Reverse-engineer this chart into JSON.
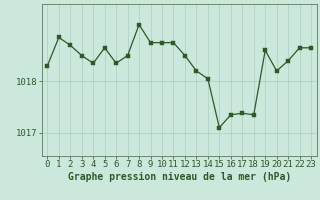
{
  "x": [
    0,
    1,
    2,
    3,
    4,
    5,
    6,
    7,
    8,
    9,
    10,
    11,
    12,
    13,
    14,
    15,
    16,
    17,
    18,
    19,
    20,
    21,
    22,
    23
  ],
  "y": [
    1018.3,
    1018.85,
    1018.7,
    1018.5,
    1018.35,
    1018.65,
    1018.35,
    1018.5,
    1019.1,
    1018.75,
    1018.75,
    1018.75,
    1018.5,
    1018.2,
    1018.05,
    1017.1,
    1017.35,
    1017.38,
    1017.35,
    1018.6,
    1018.2,
    1018.4,
    1018.65,
    1018.65
  ],
  "line_color": "#2d5a27",
  "marker_color": "#2d5a27",
  "bg_color": "#cce8dc",
  "grid_color": "#aacfbe",
  "axis_color": "#2d5a27",
  "border_color": "#5a7a5a",
  "ylabel_ticks": [
    1017,
    1018
  ],
  "xlabel": "Graphe pression niveau de la mer (hPa)",
  "xlim": [
    -0.5,
    23.5
  ],
  "ylim": [
    1016.55,
    1019.5
  ],
  "xlabel_fontsize": 7,
  "tick_fontsize": 6.5
}
